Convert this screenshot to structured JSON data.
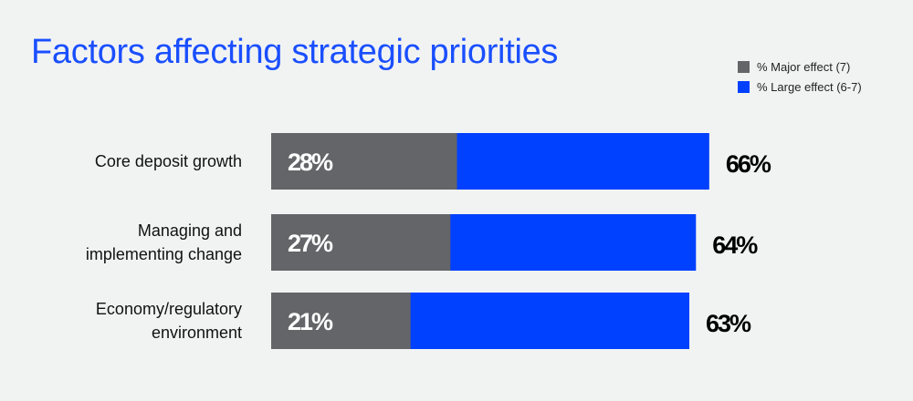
{
  "chart_data": {
    "type": "bar",
    "orientation": "horizontal",
    "title": "Factors affecting strategic priorities",
    "categories": [
      [
        "Core deposit growth"
      ],
      [
        "Managing and",
        "implementing change"
      ],
      [
        "Economy/regulatory",
        "environment"
      ]
    ],
    "series": [
      {
        "name": "% Major effect (7)",
        "values": [
          28,
          27,
          21
        ],
        "labels": [
          "28%",
          "27%",
          "21%"
        ],
        "color": "#636568"
      },
      {
        "name": "% Large effect (6-7)",
        "values": [
          66,
          64,
          63
        ],
        "labels": [
          "66%",
          "64%",
          "63%"
        ],
        "color": "#0040ff"
      }
    ],
    "legend_position": "top-right",
    "xlim": [
      0,
      100
    ],
    "grid": false
  },
  "colors": {
    "background": "#f1f3f3",
    "title": "#1a4fff"
  }
}
